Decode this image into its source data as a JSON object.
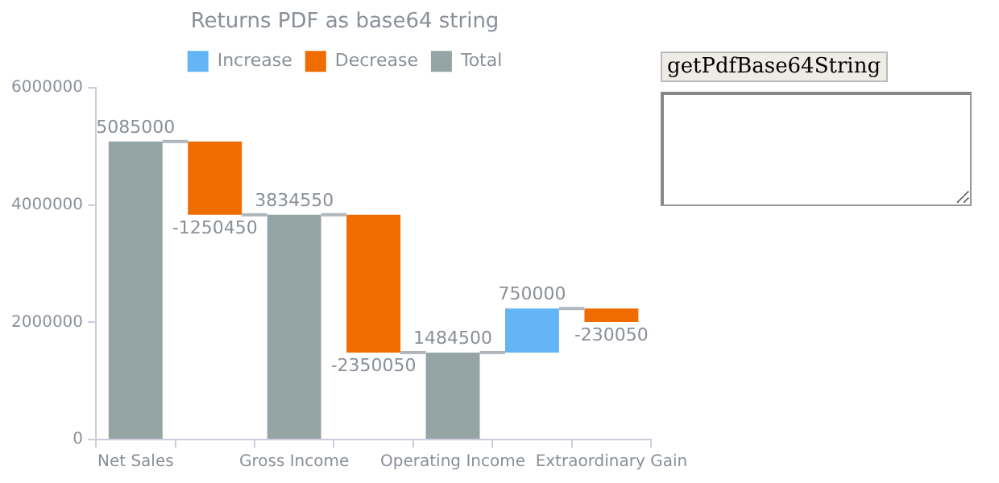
{
  "chart_data": {
    "type": "bar",
    "title": "Returns PDF as base64 string",
    "categories": [
      "Net Sales",
      null,
      "Gross Income",
      null,
      "Operating Income",
      null,
      "Extraordinary Gain"
    ],
    "series": [
      {
        "name": "Increase",
        "color": "#64b5f6",
        "values": [
          null,
          null,
          null,
          null,
          null,
          750000,
          null
        ],
        "base": [
          null,
          null,
          null,
          null,
          null,
          1484500,
          null
        ]
      },
      {
        "name": "Decrease",
        "color": "#ef6c00",
        "values": [
          null,
          -1250450,
          null,
          -2350050,
          null,
          null,
          -230050
        ],
        "base": [
          null,
          5085000,
          null,
          3834550,
          null,
          null,
          2234500
        ]
      },
      {
        "name": "Total",
        "color": "#95a5a6",
        "values": [
          5085000,
          null,
          3834550,
          null,
          1484500,
          null,
          null
        ]
      }
    ],
    "ylim": [
      0,
      6000000
    ],
    "yticks": [
      0,
      2000000,
      4000000,
      6000000
    ],
    "legend": "top",
    "data_labels": true,
    "annotations": [
      "getPdfBase64String"
    ]
  }
}
